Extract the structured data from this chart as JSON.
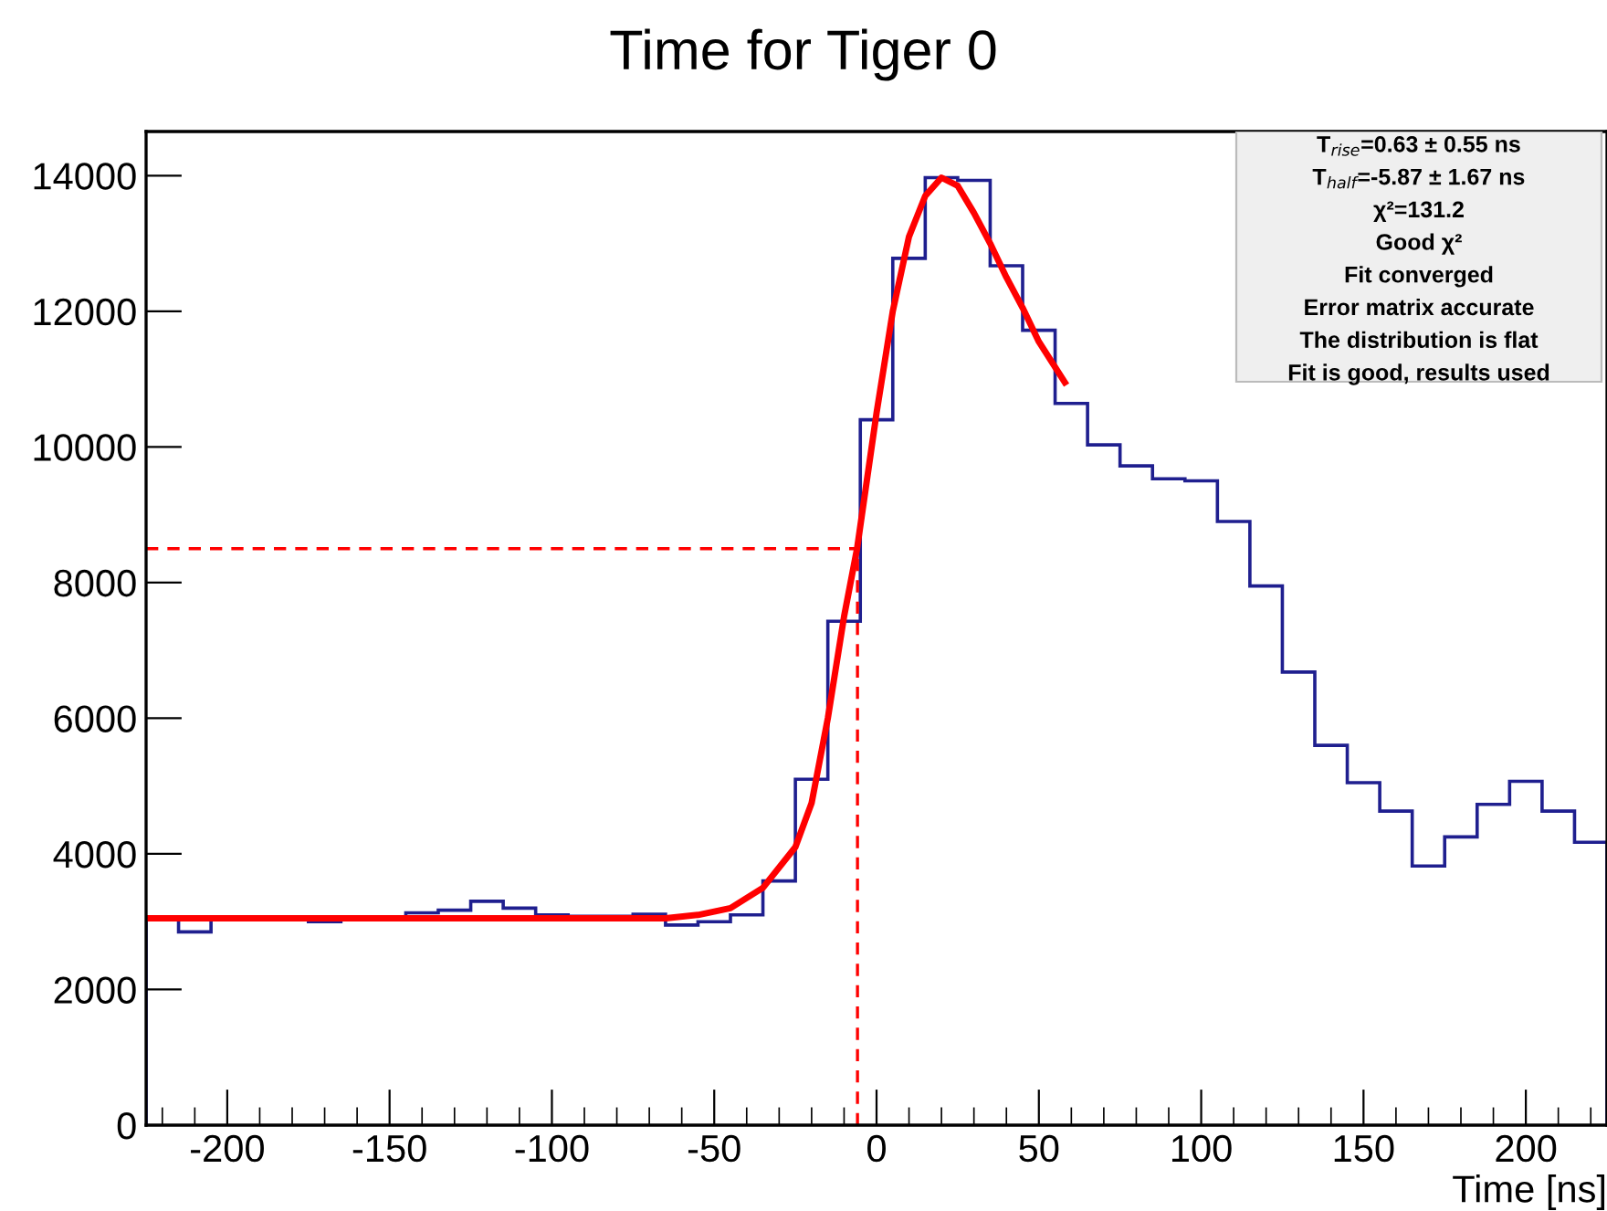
{
  "chart_data": {
    "type": "histogram",
    "title": "Time for Tiger 0",
    "xlabel": "Time [ns]",
    "xlim": [
      -225,
      225
    ],
    "xticks": [
      -200,
      -150,
      -100,
      -50,
      0,
      50,
      100,
      150,
      200
    ],
    "ylim": [
      0,
      14650
    ],
    "yticks": [
      0,
      2000,
      4000,
      6000,
      8000,
      10000,
      12000,
      14000
    ],
    "grid": false,
    "series": [
      {
        "color": "#1f1f8f",
        "bins": [
          -225,
          -215,
          -205,
          -195,
          -185,
          -175,
          -165,
          -155,
          -145,
          -135,
          -125,
          -115,
          -105,
          -95,
          -85,
          -75,
          -65,
          -55,
          -45,
          -35,
          -25,
          -15,
          -5,
          5,
          15,
          25,
          35,
          45,
          55,
          65,
          75,
          85,
          95,
          105,
          115,
          125,
          135,
          145,
          155,
          165,
          175,
          185,
          195,
          205,
          215,
          225
        ],
        "values": [
          3050,
          2850,
          3050,
          3050,
          3050,
          3000,
          3050,
          3050,
          3130,
          3170,
          3300,
          3200,
          3100,
          3080,
          3080,
          3110,
          2950,
          3000,
          3100,
          3600,
          5100,
          7430,
          10400,
          12780,
          13970,
          13930,
          12670,
          11720,
          10640,
          10030,
          9720,
          9530,
          9500,
          8900,
          7950,
          6680,
          5600,
          5050,
          4630,
          3820,
          4250,
          4730,
          5070,
          4630,
          4170
        ]
      },
      {
        "type": "line",
        "color": "#ff0000",
        "x": [
          -225,
          -100,
          -65,
          -55,
          -45,
          -35,
          -25,
          -20,
          -15,
          -10,
          -6,
          0,
          5,
          10,
          15,
          20,
          25,
          30,
          35,
          40,
          45,
          50,
          58
        ],
        "values": [
          3050,
          3050,
          3050,
          3100,
          3200,
          3500,
          4100,
          4750,
          6000,
          7500,
          8500,
          10500,
          12000,
          13100,
          13700,
          13970,
          13850,
          13450,
          13000,
          12500,
          12050,
          11550,
          10950
        ]
      }
    ],
    "ref_lines": [
      {
        "axis": "x",
        "value": -5.87,
        "color": "#ff0000",
        "line_style": "dashed"
      },
      {
        "axis": "y",
        "value": 8500,
        "color": "#ff0000",
        "line_style": "dashed"
      }
    ],
    "annotations": [
      "T$_{rise}$=0.63 ± 0.55 ns",
      "T$_{half}$=-5.87 ± 1.67 ns",
      "χ²=131.2",
      "Good χ²",
      "Fit converged",
      "Error matrix accurate",
      "The distribution is flat",
      "Fit is good, results used"
    ]
  }
}
